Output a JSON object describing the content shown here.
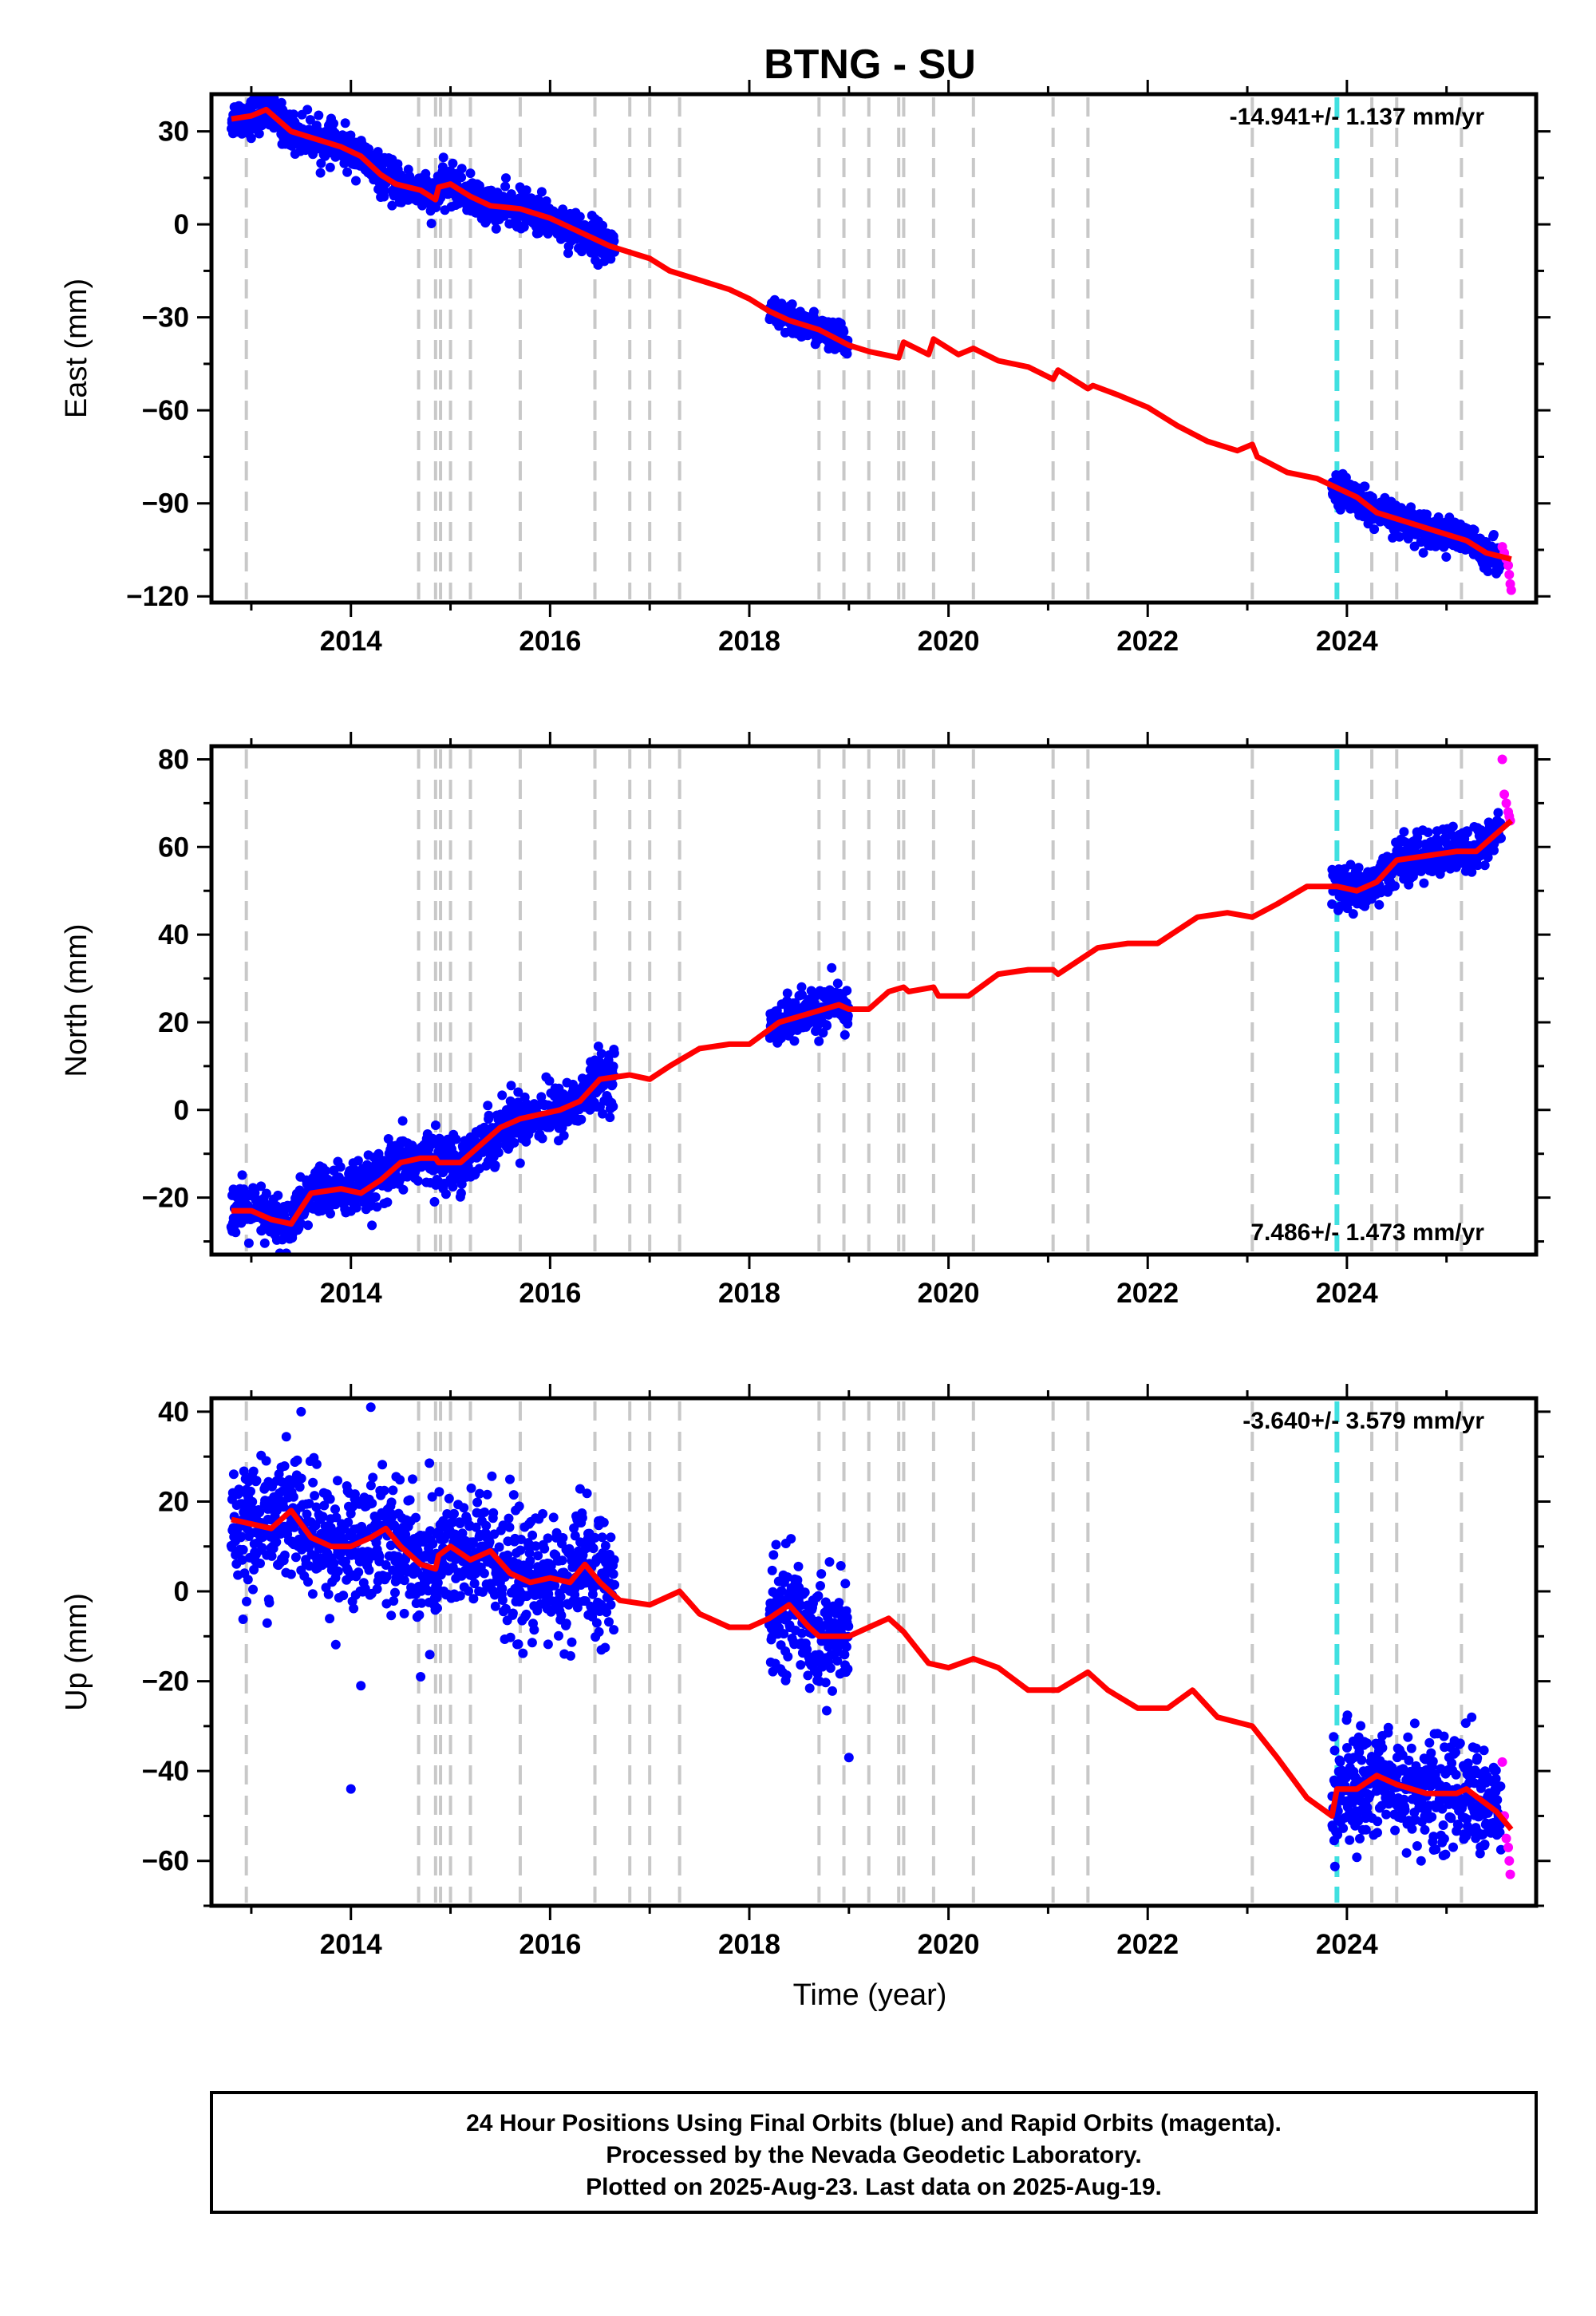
{
  "title": "BTNG - SU",
  "x_axis_label": "Time (year)",
  "footer": {
    "lines": [
      "24 Hour Positions Using Final Orbits (blue) and Rapid Orbits (magenta).",
      "Processed by the Nevada Geodetic Laboratory.",
      "Plotted on 2025-Aug-23. Last data on 2025-Aug-19."
    ]
  },
  "colors": {
    "final_orbits": "#0000ff",
    "rapid_orbits": "#ff00ff",
    "model": "#ff0000",
    "step_marker": "#c8c8c8",
    "equipment_change": "#40e0e0"
  },
  "chart_data": [
    {
      "type": "scatter",
      "name": "East",
      "ylabel": "East (mm)",
      "xlim": [
        2012.6,
        2025.9
      ],
      "ylim": [
        -122,
        42
      ],
      "xticks": [
        2014,
        2016,
        2018,
        2020,
        2022,
        2024
      ],
      "yticks": [
        30,
        0,
        -30,
        -60,
        -90,
        -120
      ],
      "rate_annotation": "-14.941+/- 1.137 mm/yr",
      "rate_position": "top-right",
      "grid": false,
      "step_markers": [
        2012.95,
        2014.68,
        2014.85,
        2014.9,
        2015.0,
        2015.2,
        2015.7,
        2016.45,
        2016.8,
        2017.0,
        2017.3,
        2018.7,
        2018.95,
        2019.2,
        2019.5,
        2019.55,
        2019.85,
        2020.25,
        2021.05,
        2021.4,
        2023.05,
        2024.25,
        2024.5,
        2025.15
      ],
      "equipment_change": [
        2023.9
      ],
      "model": [
        [
          2012.8,
          34
        ],
        [
          2013.0,
          35
        ],
        [
          2013.15,
          37
        ],
        [
          2013.4,
          30
        ],
        [
          2013.6,
          28
        ],
        [
          2013.9,
          25
        ],
        [
          2014.1,
          22
        ],
        [
          2014.3,
          16
        ],
        [
          2014.45,
          13
        ],
        [
          2014.7,
          11
        ],
        [
          2014.85,
          8
        ],
        [
          2014.88,
          12
        ],
        [
          2015.0,
          13
        ],
        [
          2015.2,
          9
        ],
        [
          2015.4,
          6
        ],
        [
          2015.7,
          5
        ],
        [
          2016.0,
          2
        ],
        [
          2016.2,
          -1
        ],
        [
          2016.4,
          -4
        ],
        [
          2016.6,
          -7
        ],
        [
          2016.8,
          -9
        ],
        [
          2017.0,
          -11
        ],
        [
          2017.2,
          -15
        ],
        [
          2017.5,
          -18
        ],
        [
          2017.8,
          -21
        ],
        [
          2018.0,
          -24
        ],
        [
          2018.2,
          -28
        ],
        [
          2018.4,
          -31
        ],
        [
          2018.7,
          -34
        ],
        [
          2019.0,
          -39
        ],
        [
          2019.2,
          -41
        ],
        [
          2019.35,
          -42
        ],
        [
          2019.5,
          -43
        ],
        [
          2019.55,
          -38
        ],
        [
          2019.8,
          -42
        ],
        [
          2019.85,
          -37
        ],
        [
          2020.1,
          -42
        ],
        [
          2020.25,
          -40
        ],
        [
          2020.5,
          -44
        ],
        [
          2020.8,
          -46
        ],
        [
          2021.05,
          -50
        ],
        [
          2021.1,
          -47
        ],
        [
          2021.4,
          -53
        ],
        [
          2021.45,
          -52
        ],
        [
          2021.7,
          -55
        ],
        [
          2022.0,
          -59
        ],
        [
          2022.3,
          -65
        ],
        [
          2022.6,
          -70
        ],
        [
          2022.9,
          -73
        ],
        [
          2023.05,
          -71
        ],
        [
          2023.1,
          -75
        ],
        [
          2023.4,
          -80
        ],
        [
          2023.7,
          -82
        ],
        [
          2023.9,
          -85
        ],
        [
          2024.1,
          -88
        ],
        [
          2024.3,
          -93
        ],
        [
          2024.6,
          -96
        ],
        [
          2024.9,
          -99
        ],
        [
          2025.2,
          -102
        ],
        [
          2025.4,
          -106
        ],
        [
          2025.65,
          -108
        ]
      ],
      "final_orbit_clusters": [
        {
          "x_range": [
            2012.8,
            2016.65
          ],
          "scatter_mm": 3
        },
        {
          "x_range": [
            2018.2,
            2019.0
          ],
          "scatter_mm": 2.5
        },
        {
          "x_range": [
            2023.85,
            2025.55
          ],
          "scatter_mm": 2.5
        }
      ],
      "rapid_orbit_points": [
        [
          2025.56,
          -104
        ],
        [
          2025.58,
          -106
        ],
        [
          2025.6,
          -108
        ],
        [
          2025.62,
          -110
        ],
        [
          2025.63,
          -113
        ],
        [
          2025.64,
          -116
        ],
        [
          2025.65,
          -118
        ]
      ]
    },
    {
      "type": "scatter",
      "name": "North",
      "ylabel": "North (mm)",
      "xlim": [
        2012.6,
        2025.9
      ],
      "ylim": [
        -33,
        83
      ],
      "xticks": [
        2014,
        2016,
        2018,
        2020,
        2022,
        2024
      ],
      "yticks": [
        80,
        60,
        40,
        20,
        0,
        -20
      ],
      "rate_annotation": "7.486+/- 1.473 mm/yr",
      "rate_position": "bottom-right",
      "grid": false,
      "step_markers": [
        2012.95,
        2014.68,
        2014.85,
        2014.9,
        2015.0,
        2015.2,
        2015.7,
        2016.45,
        2016.8,
        2017.0,
        2017.3,
        2018.7,
        2018.95,
        2019.2,
        2019.5,
        2019.55,
        2019.85,
        2020.25,
        2021.05,
        2021.4,
        2023.05,
        2024.25,
        2024.5,
        2025.15
      ],
      "equipment_change": [
        2023.9
      ],
      "model": [
        [
          2012.8,
          -23
        ],
        [
          2013.0,
          -23
        ],
        [
          2013.2,
          -25
        ],
        [
          2013.4,
          -26
        ],
        [
          2013.6,
          -19
        ],
        [
          2013.9,
          -18
        ],
        [
          2014.1,
          -19
        ],
        [
          2014.3,
          -16
        ],
        [
          2014.5,
          -12
        ],
        [
          2014.7,
          -11
        ],
        [
          2014.85,
          -11
        ],
        [
          2014.88,
          -12
        ],
        [
          2015.1,
          -12
        ],
        [
          2015.3,
          -8
        ],
        [
          2015.5,
          -4
        ],
        [
          2015.7,
          -2
        ],
        [
          2015.9,
          -1
        ],
        [
          2016.1,
          0
        ],
        [
          2016.3,
          2
        ],
        [
          2016.5,
          7
        ],
        [
          2016.8,
          8
        ],
        [
          2017.0,
          7
        ],
        [
          2017.2,
          10
        ],
        [
          2017.5,
          14
        ],
        [
          2017.8,
          15
        ],
        [
          2018.0,
          15
        ],
        [
          2018.3,
          20
        ],
        [
          2018.6,
          22
        ],
        [
          2018.9,
          24
        ],
        [
          2019.0,
          23
        ],
        [
          2019.2,
          23
        ],
        [
          2019.4,
          27
        ],
        [
          2019.55,
          28
        ],
        [
          2019.6,
          27
        ],
        [
          2019.85,
          28
        ],
        [
          2019.9,
          26
        ],
        [
          2020.2,
          26
        ],
        [
          2020.5,
          31
        ],
        [
          2020.8,
          32
        ],
        [
          2021.05,
          32
        ],
        [
          2021.1,
          31
        ],
        [
          2021.5,
          37
        ],
        [
          2021.8,
          38
        ],
        [
          2022.1,
          38
        ],
        [
          2022.5,
          44
        ],
        [
          2022.8,
          45
        ],
        [
          2023.05,
          44
        ],
        [
          2023.3,
          47
        ],
        [
          2023.6,
          51
        ],
        [
          2023.9,
          51
        ],
        [
          2024.1,
          50
        ],
        [
          2024.3,
          52
        ],
        [
          2024.5,
          57
        ],
        [
          2024.8,
          58
        ],
        [
          2025.1,
          59
        ],
        [
          2025.3,
          59
        ],
        [
          2025.5,
          63
        ],
        [
          2025.65,
          66
        ]
      ],
      "final_orbit_clusters": [
        {
          "x_range": [
            2012.8,
            2016.65
          ],
          "scatter_mm": 3
        },
        {
          "x_range": [
            2018.2,
            2019.0
          ],
          "scatter_mm": 2.5
        },
        {
          "x_range": [
            2023.85,
            2025.55
          ],
          "scatter_mm": 2.5
        }
      ],
      "rapid_orbit_points": [
        [
          2025.56,
          80
        ],
        [
          2025.58,
          72
        ],
        [
          2025.6,
          70
        ],
        [
          2025.62,
          68
        ],
        [
          2025.63,
          67
        ],
        [
          2025.64,
          66
        ]
      ]
    },
    {
      "type": "scatter",
      "name": "Up",
      "ylabel": "Up (mm)",
      "xlim": [
        2012.6,
        2025.9
      ],
      "ylim": [
        -70,
        43
      ],
      "xticks": [
        2014,
        2016,
        2018,
        2020,
        2022,
        2024
      ],
      "yticks": [
        40,
        20,
        0,
        -20,
        -40,
        -60
      ],
      "rate_annotation": "-3.640+/- 3.579 mm/yr",
      "rate_position": "top-right",
      "grid": false,
      "step_markers": [
        2012.95,
        2014.68,
        2014.85,
        2014.9,
        2015.0,
        2015.2,
        2015.7,
        2016.45,
        2016.8,
        2017.0,
        2017.3,
        2018.7,
        2018.95,
        2019.2,
        2019.5,
        2019.55,
        2019.85,
        2020.25,
        2021.05,
        2021.4,
        2023.05,
        2024.25,
        2024.5,
        2025.15
      ],
      "equipment_change": [
        2023.9
      ],
      "model": [
        [
          2012.8,
          16
        ],
        [
          2013.0,
          15
        ],
        [
          2013.2,
          14
        ],
        [
          2013.4,
          18
        ],
        [
          2013.6,
          12
        ],
        [
          2013.8,
          10
        ],
        [
          2014.0,
          10
        ],
        [
          2014.2,
          12
        ],
        [
          2014.35,
          14
        ],
        [
          2014.5,
          10
        ],
        [
          2014.7,
          6
        ],
        [
          2014.85,
          5
        ],
        [
          2014.88,
          8
        ],
        [
          2015.0,
          10
        ],
        [
          2015.2,
          7
        ],
        [
          2015.4,
          9
        ],
        [
          2015.6,
          4
        ],
        [
          2015.8,
          2
        ],
        [
          2016.0,
          3
        ],
        [
          2016.2,
          2
        ],
        [
          2016.35,
          6
        ],
        [
          2016.5,
          2
        ],
        [
          2016.7,
          -2
        ],
        [
          2017.0,
          -3
        ],
        [
          2017.3,
          0
        ],
        [
          2017.5,
          -5
        ],
        [
          2017.8,
          -8
        ],
        [
          2018.0,
          -8
        ],
        [
          2018.2,
          -6
        ],
        [
          2018.4,
          -3
        ],
        [
          2018.6,
          -8
        ],
        [
          2018.7,
          -10
        ],
        [
          2019.0,
          -10
        ],
        [
          2019.2,
          -8
        ],
        [
          2019.4,
          -6
        ],
        [
          2019.55,
          -9
        ],
        [
          2019.8,
          -16
        ],
        [
          2020.0,
          -17
        ],
        [
          2020.25,
          -15
        ],
        [
          2020.5,
          -17
        ],
        [
          2020.8,
          -22
        ],
        [
          2021.1,
          -22
        ],
        [
          2021.4,
          -18
        ],
        [
          2021.6,
          -22
        ],
        [
          2021.9,
          -26
        ],
        [
          2022.2,
          -26
        ],
        [
          2022.45,
          -22
        ],
        [
          2022.7,
          -28
        ],
        [
          2023.05,
          -30
        ],
        [
          2023.3,
          -37
        ],
        [
          2023.6,
          -46
        ],
        [
          2023.85,
          -50
        ],
        [
          2023.9,
          -44
        ],
        [
          2024.1,
          -44
        ],
        [
          2024.3,
          -41
        ],
        [
          2024.5,
          -43
        ],
        [
          2024.8,
          -45
        ],
        [
          2025.1,
          -45
        ],
        [
          2025.2,
          -44
        ],
        [
          2025.5,
          -49
        ],
        [
          2025.65,
          -53
        ]
      ],
      "final_orbit_clusters": [
        {
          "x_range": [
            2012.8,
            2016.65
          ],
          "scatter_mm": 7
        },
        {
          "x_range": [
            2018.2,
            2019.0
          ],
          "scatter_mm": 6
        },
        {
          "x_range": [
            2023.85,
            2025.55
          ],
          "scatter_mm": 6
        }
      ],
      "outliers": [
        [
          2013.5,
          40
        ],
        [
          2014.2,
          41
        ],
        [
          2014.1,
          -21
        ],
        [
          2014.0,
          -44
        ],
        [
          2014.7,
          -19
        ],
        [
          2019.0,
          -37
        ]
      ],
      "rapid_orbit_points": [
        [
          2025.56,
          -38
        ],
        [
          2025.58,
          -50
        ],
        [
          2025.6,
          -55
        ],
        [
          2025.62,
          -57
        ],
        [
          2025.63,
          -60
        ],
        [
          2025.64,
          -63
        ]
      ]
    }
  ]
}
